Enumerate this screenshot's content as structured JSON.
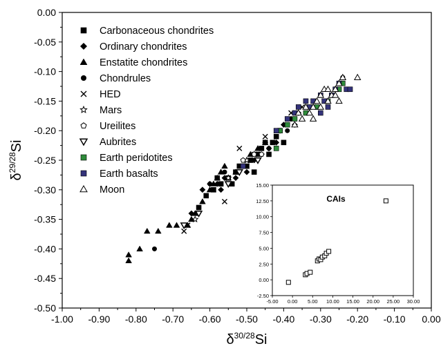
{
  "chart_data": [
    {
      "type": "scatter",
      "title": "",
      "xlabel": "δ30/28Si",
      "ylabel": "δ29/28Si",
      "xlabel_parts": {
        "main": "δ",
        "sup": "30/28",
        "tail": "Si"
      },
      "ylabel_parts": {
        "main": "δ",
        "sup": "29/28",
        "tail": "Si"
      },
      "xlim": [
        -1.0,
        0.0
      ],
      "ylim": [
        -0.5,
        0.0
      ],
      "xticks": [
        "-1.00",
        "-0.90",
        "-0.80",
        "-0.70",
        "-0.60",
        "-0.50",
        "-0.40",
        "-0.30",
        "-0.20",
        "-0.10",
        "0.00"
      ],
      "yticks": [
        "0.00",
        "-0.05",
        "-0.10",
        "-0.15",
        "-0.20",
        "-0.25",
        "-0.30",
        "-0.35",
        "-0.40",
        "-0.45",
        "-0.50"
      ],
      "legend_position": "top-left",
      "series": [
        {
          "name": "Carbonaceous chondrites",
          "marker": "square",
          "color": "#000000",
          "points": [
            [
              -0.63,
              -0.33
            ],
            [
              -0.61,
              -0.31
            ],
            [
              -0.59,
              -0.3
            ],
            [
              -0.57,
              -0.29
            ],
            [
              -0.55,
              -0.28
            ],
            [
              -0.53,
              -0.27
            ],
            [
              -0.52,
              -0.26
            ],
            [
              -0.5,
              -0.26
            ],
            [
              -0.49,
              -0.25
            ],
            [
              -0.47,
              -0.24
            ],
            [
              -0.46,
              -0.23
            ],
            [
              -0.45,
              -0.22
            ],
            [
              -0.43,
              -0.22
            ],
            [
              -0.42,
              -0.21
            ],
            [
              -0.41,
              -0.2
            ],
            [
              -0.54,
              -0.29
            ],
            [
              -0.58,
              -0.28
            ],
            [
              -0.48,
              -0.27
            ],
            [
              -0.44,
              -0.24
            ],
            [
              -0.4,
              -0.22
            ]
          ]
        },
        {
          "name": "Ordinary chondrites",
          "marker": "diamond",
          "color": "#000000",
          "points": [
            [
              -0.65,
              -0.34
            ],
            [
              -0.62,
              -0.3
            ],
            [
              -0.58,
              -0.29
            ],
            [
              -0.56,
              -0.28
            ],
            [
              -0.53,
              -0.28
            ],
            [
              -0.51,
              -0.26
            ],
            [
              -0.48,
              -0.25
            ],
            [
              -0.46,
              -0.24
            ],
            [
              -0.44,
              -0.23
            ],
            [
              -0.42,
              -0.22
            ],
            [
              -0.41,
              -0.2
            ],
            [
              -0.4,
              -0.19
            ],
            [
              -0.38,
              -0.18
            ],
            [
              -0.36,
              -0.17
            ],
            [
              -0.6,
              -0.29
            ],
            [
              -0.57,
              -0.3
            ],
            [
              -0.5,
              -0.27
            ],
            [
              -0.45,
              -0.22
            ],
            [
              -0.37,
              -0.19
            ]
          ]
        },
        {
          "name": "Enstatite chondrites",
          "marker": "triangle-up",
          "color": "#000000",
          "points": [
            [
              -0.82,
              -0.41
            ],
            [
              -0.82,
              -0.42
            ],
            [
              -0.79,
              -0.4
            ],
            [
              -0.77,
              -0.37
            ],
            [
              -0.74,
              -0.37
            ],
            [
              -0.71,
              -0.36
            ],
            [
              -0.69,
              -0.36
            ],
            [
              -0.66,
              -0.36
            ],
            [
              -0.65,
              -0.35
            ],
            [
              -0.64,
              -0.34
            ],
            [
              -0.62,
              -0.32
            ],
            [
              -0.6,
              -0.3
            ],
            [
              -0.59,
              -0.29
            ],
            [
              -0.58,
              -0.28
            ],
            [
              -0.57,
              -0.27
            ],
            [
              -0.55,
              -0.28
            ],
            [
              -0.53,
              -0.27
            ],
            [
              -0.49,
              -0.24
            ],
            [
              -0.47,
              -0.23
            ],
            [
              -0.45,
              -0.22
            ],
            [
              -0.56,
              -0.26
            ]
          ]
        },
        {
          "name": "Chondrules",
          "marker": "circle",
          "color": "#000000",
          "points": [
            [
              -0.75,
              -0.4
            ],
            [
              -0.6,
              -0.29
            ],
            [
              -0.56,
              -0.27
            ],
            [
              -0.53,
              -0.27
            ],
            [
              -0.5,
              -0.26
            ],
            [
              -0.46,
              -0.24
            ],
            [
              -0.44,
              -0.23
            ],
            [
              -0.39,
              -0.2
            ],
            [
              -0.24,
              -0.11
            ]
          ]
        },
        {
          "name": "HED",
          "marker": "cross",
          "color": "#000000",
          "points": [
            [
              -0.67,
              -0.37
            ],
            [
              -0.66,
              -0.36
            ],
            [
              -0.59,
              -0.3
            ],
            [
              -0.56,
              -0.32
            ],
            [
              -0.52,
              -0.23
            ],
            [
              -0.5,
              -0.26
            ],
            [
              -0.48,
              -0.24
            ],
            [
              -0.45,
              -0.21
            ],
            [
              -0.42,
              -0.2
            ],
            [
              -0.38,
              -0.17
            ],
            [
              -0.35,
              -0.16
            ],
            [
              -0.32,
              -0.15
            ],
            [
              -0.29,
              -0.15
            ]
          ]
        },
        {
          "name": "Mars",
          "marker": "star",
          "color": "#000000",
          "points": [
            [
              -0.64,
              -0.35
            ],
            [
              -0.55,
              -0.28
            ],
            [
              -0.5,
              -0.25
            ],
            [
              -0.48,
              -0.24
            ]
          ]
        },
        {
          "name": "Ureilites",
          "marker": "pentagon",
          "color": "#000000",
          "points": [
            [
              -0.51,
              -0.25
            ],
            [
              -0.48,
              -0.24
            ],
            [
              -0.46,
              -0.24
            ]
          ]
        },
        {
          "name": "Aubrites",
          "marker": "triangle-down",
          "color": "#000000",
          "points": [
            [
              -0.67,
              -0.36
            ],
            [
              -0.63,
              -0.34
            ],
            [
              -0.55,
              -0.29
            ],
            [
              -0.52,
              -0.27
            ],
            [
              -0.47,
              -0.25
            ]
          ]
        },
        {
          "name": "Earth peridotites",
          "marker": "square",
          "color": "#2e8b3a",
          "points": [
            [
              -0.42,
              -0.23
            ],
            [
              -0.41,
              -0.2
            ],
            [
              -0.39,
              -0.19
            ],
            [
              -0.37,
              -0.18
            ],
            [
              -0.34,
              -0.17
            ],
            [
              -0.31,
              -0.16
            ],
            [
              -0.28,
              -0.15
            ],
            [
              -0.25,
              -0.13
            ],
            [
              -0.24,
              -0.12
            ]
          ]
        },
        {
          "name": "Earth basalts",
          "marker": "square",
          "color": "#34337a",
          "points": [
            [
              -0.51,
              -0.26
            ],
            [
              -0.42,
              -0.2
            ],
            [
              -0.39,
              -0.18
            ],
            [
              -0.37,
              -0.17
            ],
            [
              -0.36,
              -0.16
            ],
            [
              -0.34,
              -0.15
            ],
            [
              -0.32,
              -0.15
            ],
            [
              -0.3,
              -0.14
            ],
            [
              -0.29,
              -0.15
            ],
            [
              -0.27,
              -0.14
            ],
            [
              -0.26,
              -0.13
            ],
            [
              -0.25,
              -0.12
            ],
            [
              -0.23,
              -0.13
            ],
            [
              -0.22,
              -0.13
            ],
            [
              -0.28,
              -0.16
            ],
            [
              -0.3,
              -0.17
            ],
            [
              -0.33,
              -0.16
            ]
          ]
        },
        {
          "name": "Moon",
          "marker": "triangle-up-open",
          "color": "#000000",
          "points": [
            [
              -0.2,
              -0.11
            ],
            [
              -0.24,
              -0.11
            ],
            [
              -0.25,
              -0.12
            ],
            [
              -0.26,
              -0.13
            ],
            [
              -0.27,
              -0.14
            ],
            [
              -0.28,
              -0.15
            ],
            [
              -0.29,
              -0.13
            ],
            [
              -0.3,
              -0.14
            ],
            [
              -0.31,
              -0.15
            ],
            [
              -0.32,
              -0.16
            ],
            [
              -0.33,
              -0.17
            ],
            [
              -0.34,
              -0.16
            ],
            [
              -0.35,
              -0.18
            ],
            [
              -0.36,
              -0.17
            ],
            [
              -0.37,
              -0.19
            ],
            [
              -0.28,
              -0.13
            ],
            [
              -0.26,
              -0.14
            ],
            [
              -0.3,
              -0.16
            ],
            [
              -0.32,
              -0.18
            ],
            [
              -0.25,
              -0.15
            ]
          ]
        }
      ]
    },
    {
      "type": "scatter",
      "title": "CAIs",
      "xlim": [
        -5.0,
        30.0
      ],
      "ylim": [
        -2.5,
        15.0
      ],
      "xticks": [
        "-5.00",
        "0.00",
        "5.00",
        "10.00",
        "15.00",
        "20.00",
        "25.00",
        "30.00"
      ],
      "yticks": [
        "15.00",
        "12.50",
        "10.00",
        "7.50",
        "5.00",
        "2.50",
        "0.00",
        "-2.50"
      ],
      "series": [
        {
          "marker": "square-open",
          "color": "#000000",
          "points": [
            [
              -1.0,
              -0.4
            ],
            [
              3.2,
              0.8
            ],
            [
              3.6,
              1.0
            ],
            [
              4.4,
              1.2
            ],
            [
              6.2,
              3.0
            ],
            [
              6.6,
              3.3
            ],
            [
              7.0,
              3.2
            ],
            [
              7.4,
              3.6
            ],
            [
              8.0,
              3.8
            ],
            [
              8.4,
              4.2
            ],
            [
              9.0,
              4.5
            ],
            [
              23.2,
              12.5
            ]
          ]
        }
      ]
    }
  ]
}
